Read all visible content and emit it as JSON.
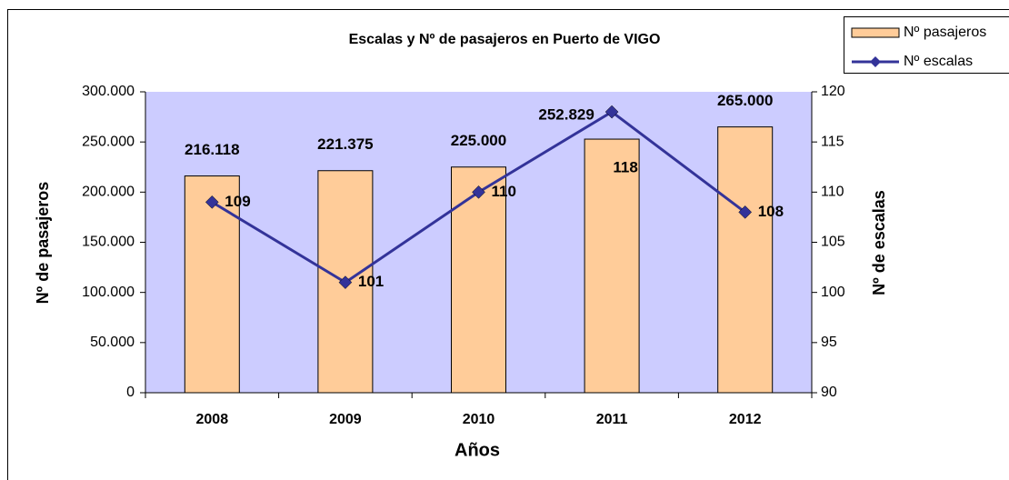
{
  "chart_data": {
    "type": "bar_line",
    "title": "Escalas y Nº de  pasajeros en Puerto de VIGO",
    "x_label": "Años",
    "y_label": "Nº de pasajeros",
    "y2_label": "Nº de escalas",
    "categories": [
      "2008",
      "2009",
      "2010",
      "2011",
      "2012"
    ],
    "series": [
      {
        "name": "Nº pasajeros",
        "color": "#ffcc99",
        "type": "bar",
        "values": [
          216118,
          221375,
          225000,
          252829,
          265000
        ],
        "value_labels": [
          "216.118",
          "221.375",
          "225.000",
          "252.829",
          "265.000"
        ]
      },
      {
        "name": "Nº escalas",
        "color": "#333399",
        "type": "line",
        "axis": "y2",
        "values": [
          109,
          101,
          110,
          118,
          108
        ]
      }
    ],
    "ylim": [
      0,
      300000
    ],
    "yticks": [
      0,
      {
        "value": 50000,
        "label": "50.000"
      },
      {
        "value": 100000,
        "label": "100.000"
      },
      {
        "value": 150000,
        "label": "150.000"
      },
      {
        "value": 200000,
        "label": "200.000"
      },
      {
        "value": 250000,
        "label": "250.000"
      },
      {
        "value": 300000,
        "label": "300.000"
      }
    ],
    "y2lim": [
      90,
      120
    ],
    "y2ticks": [
      90,
      95,
      100,
      105,
      110,
      115,
      120
    ],
    "plot_background": "#ccccff",
    "legend": "top-right"
  }
}
